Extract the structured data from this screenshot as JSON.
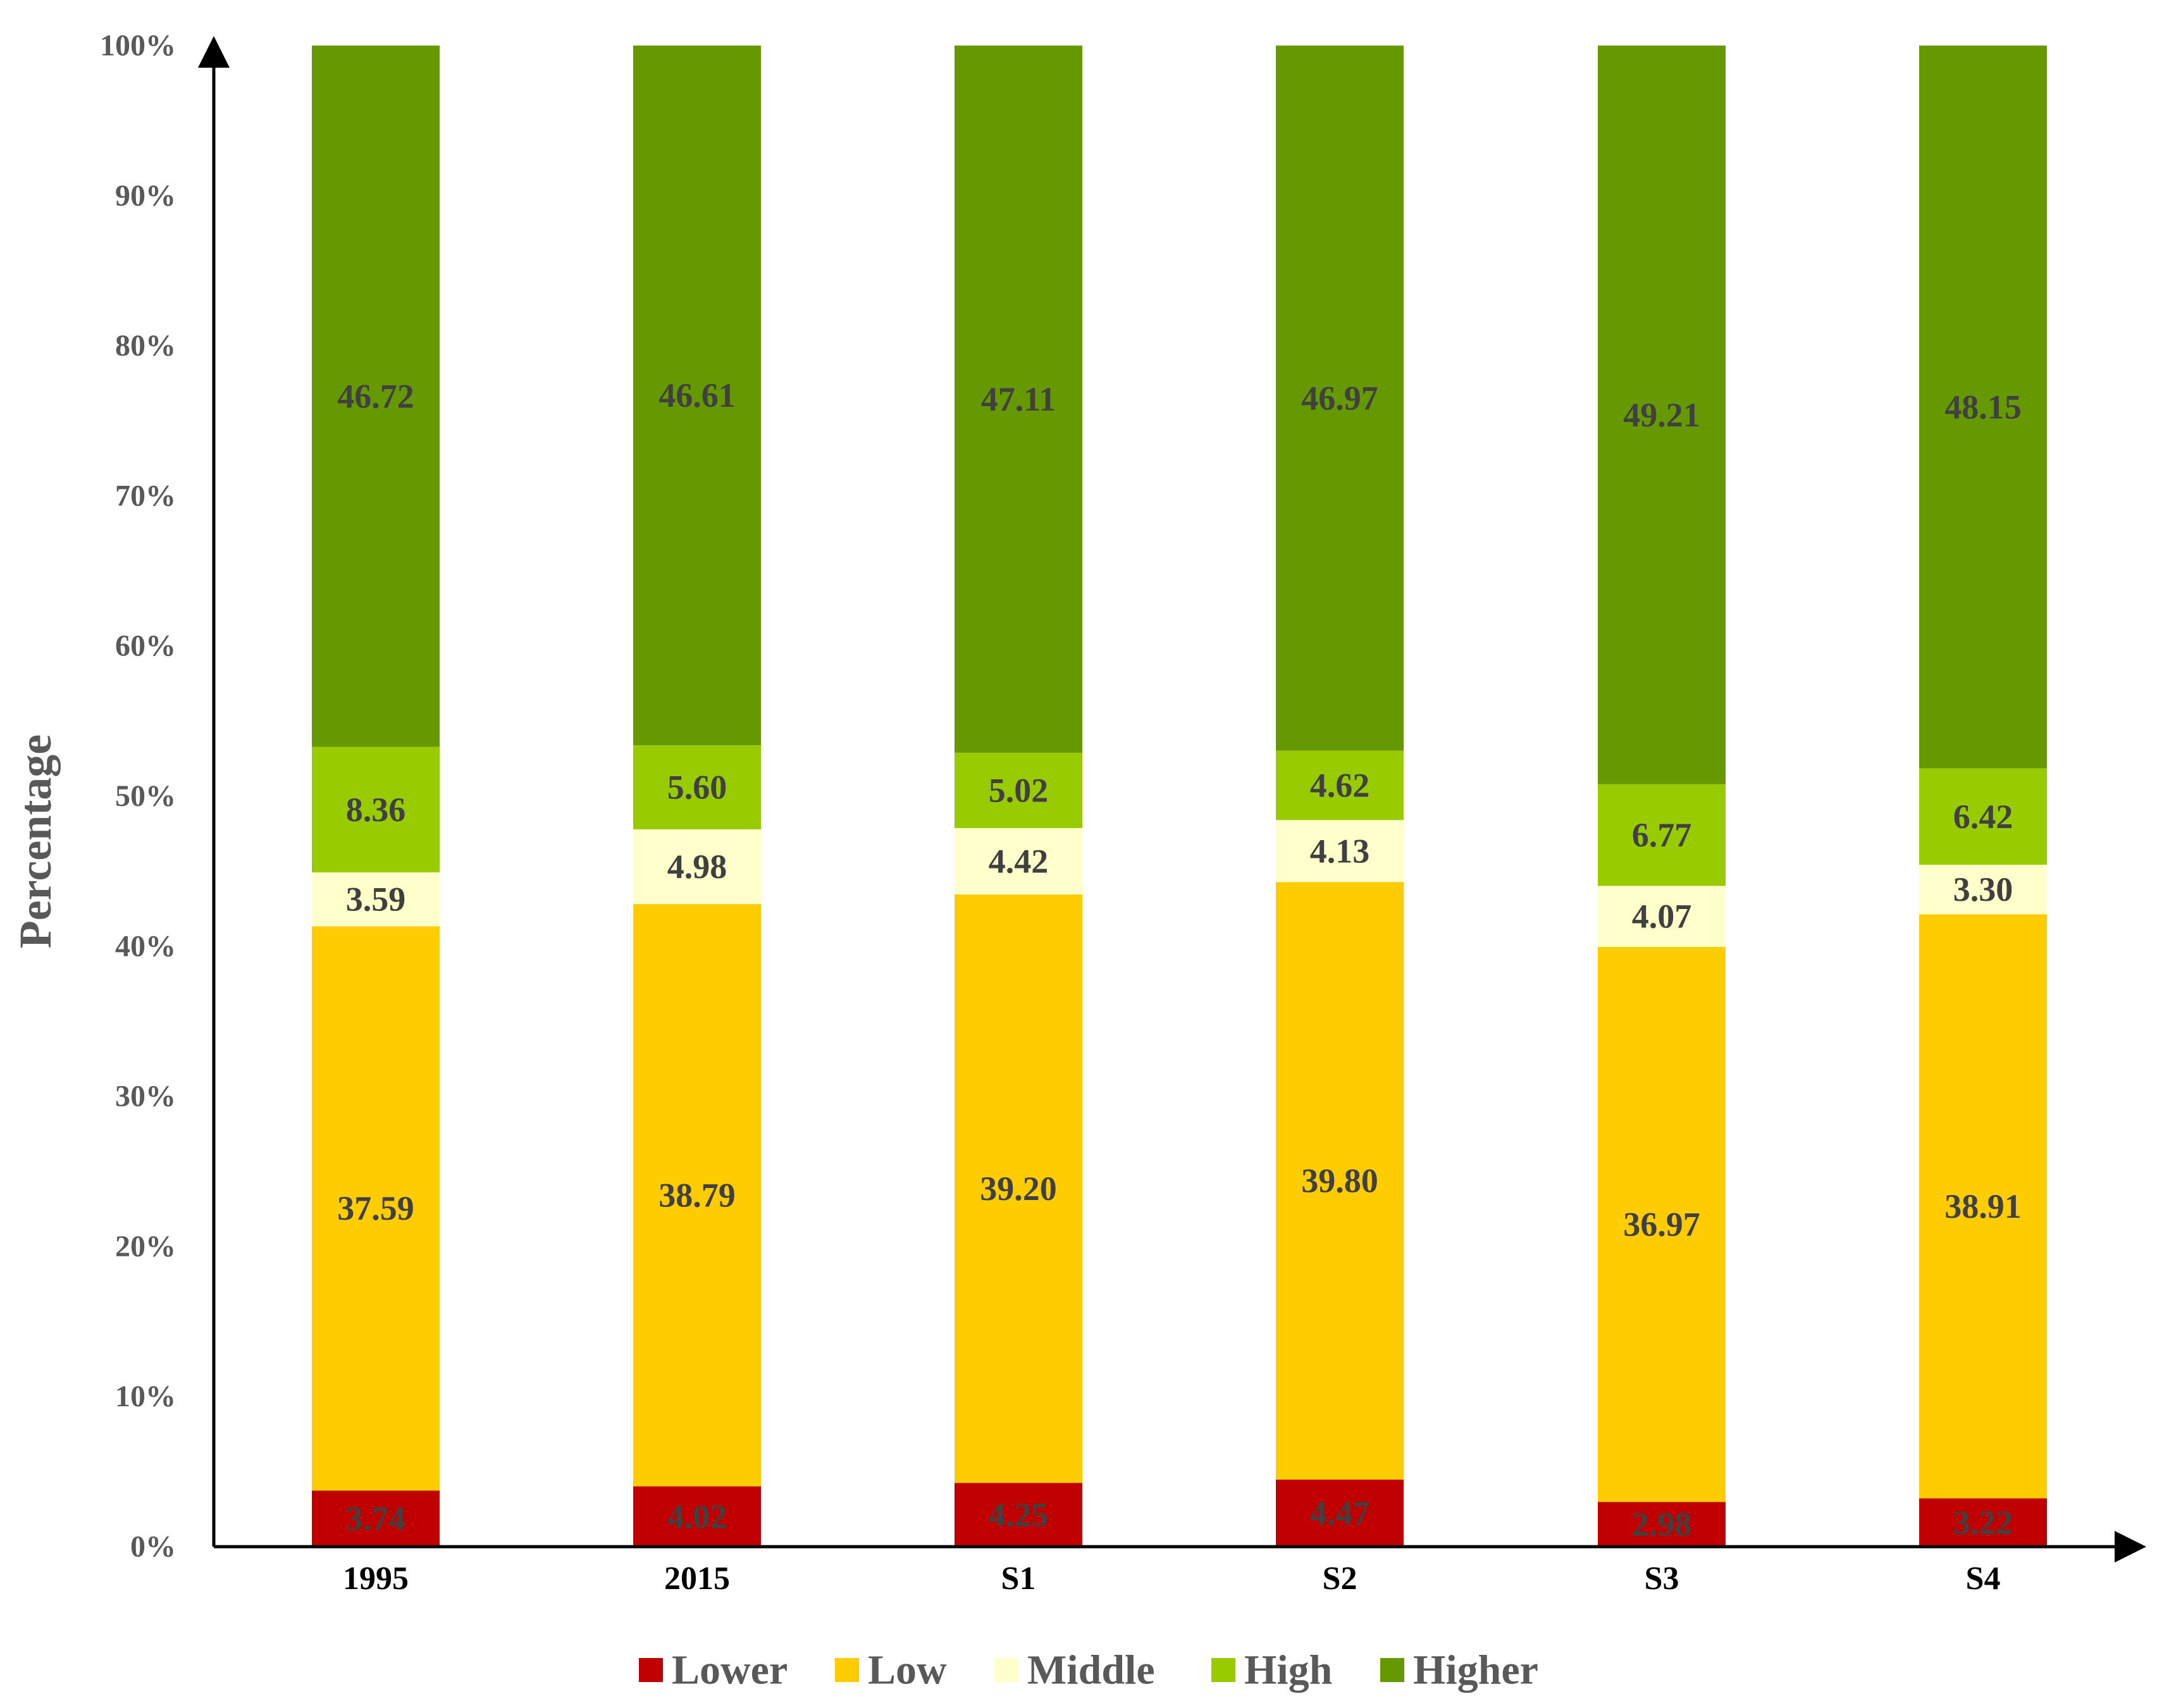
{
  "chart_data": {
    "type": "bar",
    "stacked": true,
    "normalized": true,
    "title": "",
    "xlabel": "",
    "ylabel": "Percentage",
    "ylim": [
      0,
      100
    ],
    "yticks": [
      "0%",
      "10%",
      "20%",
      "30%",
      "40%",
      "50%",
      "60%",
      "70%",
      "80%",
      "90%",
      "100%"
    ],
    "categories": [
      "1995",
      "2015",
      "S1",
      "S2",
      "S3",
      "S4"
    ],
    "series": [
      {
        "name": "Lower",
        "color": "#C00000",
        "values": [
          3.74,
          4.02,
          4.25,
          4.47,
          2.98,
          3.22
        ],
        "labels": [
          "3.74",
          "4.02",
          "4.25",
          "4.47",
          "2.98",
          "3.22"
        ]
      },
      {
        "name": "Low",
        "color": "#FFCC00",
        "values": [
          37.59,
          38.79,
          39.2,
          39.8,
          36.97,
          38.91
        ],
        "labels": [
          "37.59",
          "38.79",
          "39.20",
          "39.80",
          "36.97",
          "38.91"
        ]
      },
      {
        "name": "Middle",
        "color": "#FFFFCC",
        "values": [
          3.59,
          4.98,
          4.42,
          4.13,
          4.07,
          3.3
        ],
        "labels": [
          "3.59",
          "4.98",
          "4.42",
          "4.13",
          "4.07",
          "3.30"
        ]
      },
      {
        "name": "High",
        "color": "#99CC00",
        "values": [
          8.36,
          5.6,
          5.02,
          4.62,
          6.77,
          6.42
        ],
        "labels": [
          "8.36",
          "5.60",
          "5.02",
          "4.62",
          "6.77",
          "6.42"
        ]
      },
      {
        "name": "Higher",
        "color": "#669900",
        "values": [
          46.72,
          46.61,
          47.11,
          46.97,
          49.21,
          48.15
        ],
        "labels": [
          "46.72",
          "46.61",
          "47.11",
          "46.97",
          "49.21",
          "48.15"
        ]
      }
    ],
    "legend_position": "bottom-center",
    "grid": false
  }
}
